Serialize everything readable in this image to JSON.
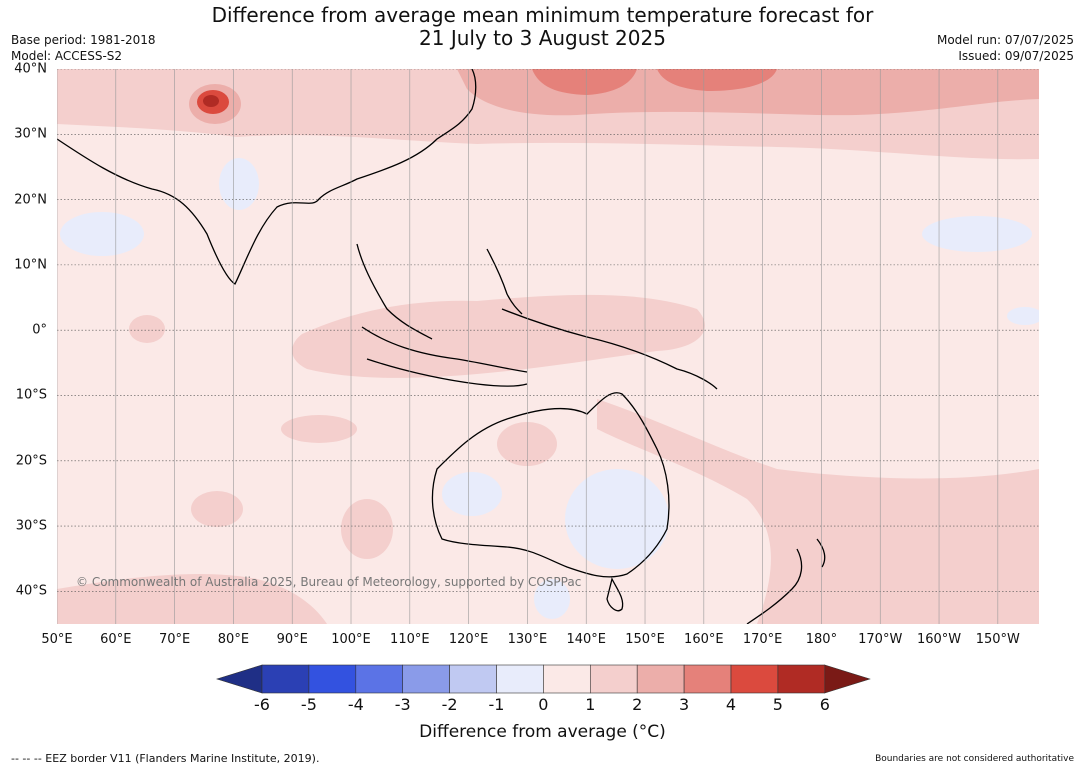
{
  "header": {
    "title_line1": "Difference from average mean minimum temperature forecast for",
    "title_line2": "21 July to 3 August 2025",
    "base_period": "Base period: 1981-2018",
    "model": "Model: ACCESS-S2",
    "model_run": "Model run: 07/07/2025",
    "issued": "Issued: 09/07/2025"
  },
  "map": {
    "lat_labels": [
      "40°N",
      "30°N",
      "20°N",
      "10°N",
      "0°",
      "10°S",
      "20°S",
      "30°S",
      "40°S"
    ],
    "lat_values": [
      40,
      30,
      20,
      10,
      0,
      -10,
      -20,
      -30,
      -40
    ],
    "lon_labels": [
      "50°E",
      "60°E",
      "70°E",
      "80°E",
      "90°E",
      "100°E",
      "110°E",
      "120°E",
      "130°E",
      "140°E",
      "150°E",
      "160°E",
      "170°E",
      "180°",
      "170°W",
      "160°W",
      "150°W"
    ],
    "lon_values": [
      50,
      60,
      70,
      80,
      90,
      100,
      110,
      120,
      130,
      140,
      150,
      160,
      170,
      180,
      190,
      200,
      210
    ],
    "lon_range": [
      50,
      217
    ],
    "lat_range": [
      -45,
      40
    ],
    "copyright": "© Commonwealth of Australia 2025, Bureau of Meteorology, supported by COSPPac"
  },
  "colorbar": {
    "ticks": [
      "-6",
      "-5",
      "-4",
      "-3",
      "-2",
      "-1",
      "0",
      "1",
      "2",
      "3",
      "4",
      "5",
      "6"
    ],
    "colors": [
      "#1f2f86",
      "#2b40b4",
      "#3352e0",
      "#5b73e6",
      "#8a9be9",
      "#c0c9f2",
      "#e8ecfb",
      "#fbe9e7",
      "#f4cfcd",
      "#ecaeaa",
      "#e5817a",
      "#db4a3e",
      "#b02b24",
      "#7a1a16"
    ],
    "label": "Difference from average (°C)"
  },
  "footer": {
    "eez_note": "-- -- -- EEZ border V11 (Flanders Marine Institute, 2019).",
    "boundaries_note": "Boundaries are not considered authoritative"
  }
}
